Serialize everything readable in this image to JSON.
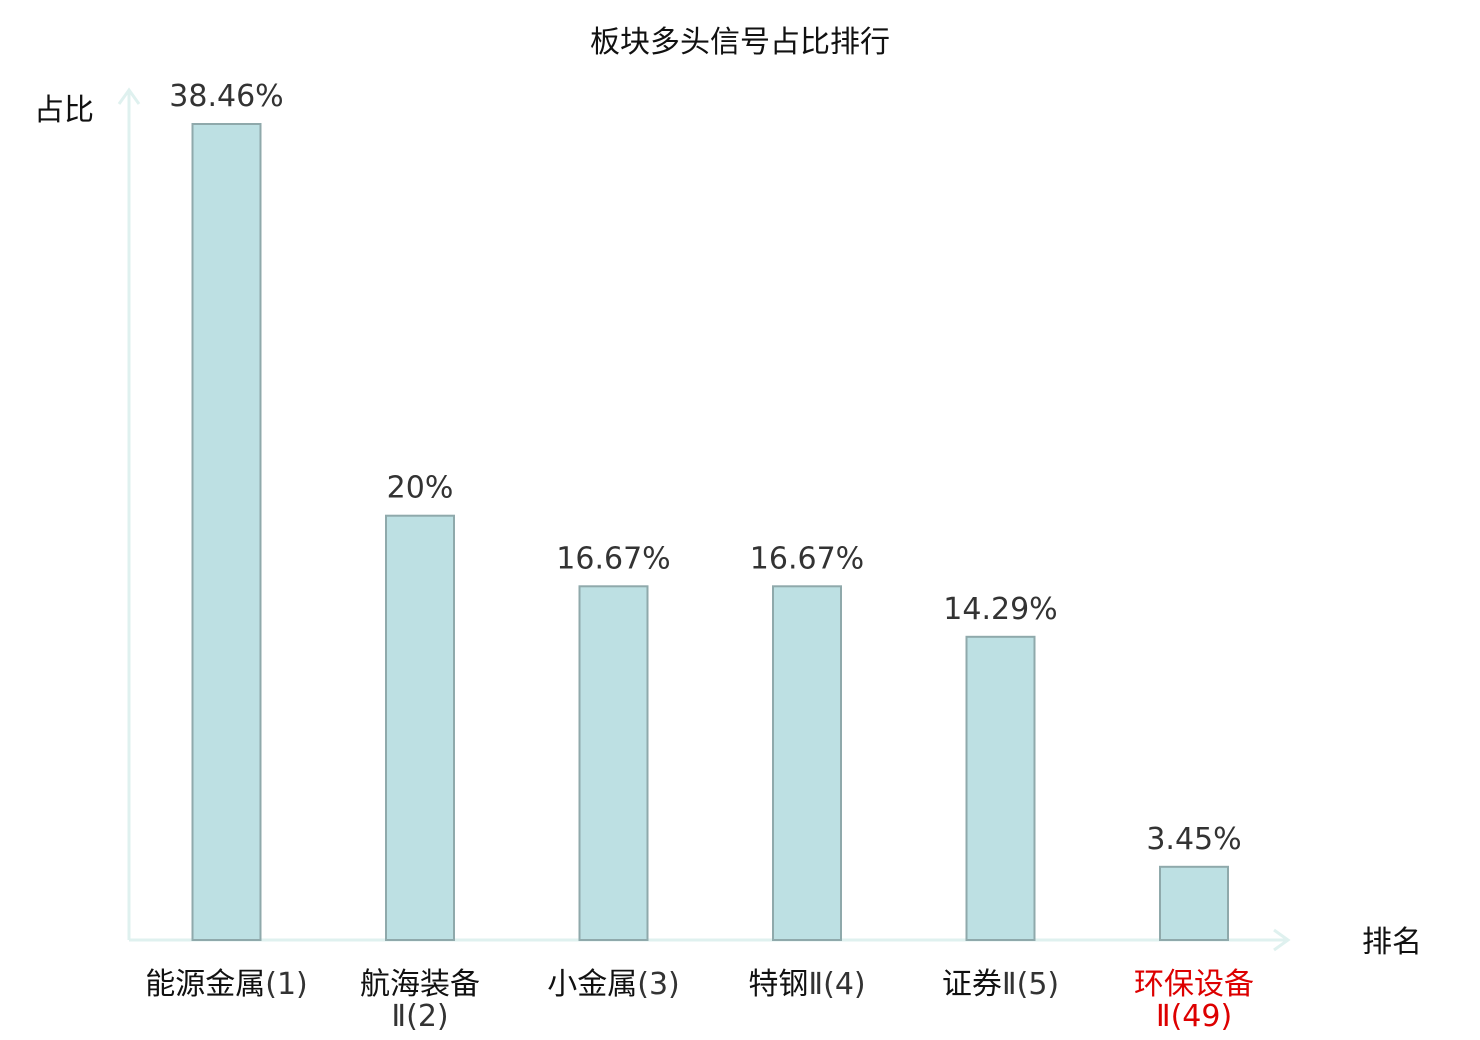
{
  "chart_data": {
    "type": "bar",
    "title": "板块多头信号占比排行",
    "ylabel": "占比",
    "xlabel": "排名",
    "ylim": [
      0,
      40
    ],
    "grid": false,
    "legend": "none",
    "categories": [
      {
        "name": "能源金属",
        "suffix": "(1)",
        "highlight": false,
        "wrap": false
      },
      {
        "name": "航海装备",
        "suffix": "Ⅱ(2)",
        "highlight": false,
        "wrap": true
      },
      {
        "name": "小金属",
        "suffix": "(3)",
        "highlight": false,
        "wrap": false
      },
      {
        "name": "特钢",
        "suffix": "Ⅱ(4)",
        "highlight": false,
        "wrap": false
      },
      {
        "name": "证券",
        "suffix": "Ⅱ(5)",
        "highlight": false,
        "wrap": false
      },
      {
        "name": "环保设备",
        "suffix": "Ⅱ(49)",
        "highlight": true,
        "wrap": true
      }
    ],
    "values": [
      38.46,
      20,
      16.67,
      16.67,
      14.29,
      3.45
    ],
    "value_labels": [
      "38.46%",
      "20%",
      "16.67%",
      "16.67%",
      "14.29%",
      "3.45%"
    ],
    "colors": {
      "bar_fill": "#bde0e3",
      "bar_stroke": "#8fa9ab",
      "axis": "#dff1ef",
      "highlight": "#dd0000"
    }
  }
}
